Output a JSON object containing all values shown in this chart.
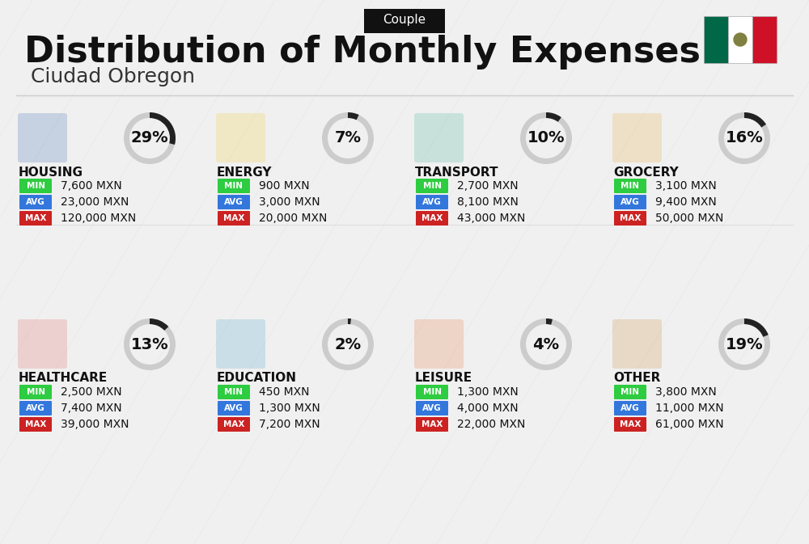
{
  "title": "Distribution of Monthly Expenses",
  "subtitle": "Ciudad Obregon",
  "tag": "Couple",
  "bg_color": "#f0f0f0",
  "categories": [
    {
      "name": "HOUSING",
      "pct": 29,
      "col": 0,
      "row": 0,
      "min": "7,600 MXN",
      "avg": "23,000 MXN",
      "max": "120,000 MXN",
      "icon_color": "#2255aa"
    },
    {
      "name": "ENERGY",
      "pct": 7,
      "col": 1,
      "row": 0,
      "min": "900 MXN",
      "avg": "3,000 MXN",
      "max": "20,000 MXN",
      "icon_color": "#f5c518"
    },
    {
      "name": "TRANSPORT",
      "pct": 10,
      "col": 2,
      "row": 0,
      "min": "2,700 MXN",
      "avg": "8,100 MXN",
      "max": "43,000 MXN",
      "icon_color": "#2aaa8a"
    },
    {
      "name": "GROCERY",
      "pct": 16,
      "col": 3,
      "row": 0,
      "min": "3,100 MXN",
      "avg": "9,400 MXN",
      "max": "50,000 MXN",
      "icon_color": "#e8a020"
    },
    {
      "name": "HEALTHCARE",
      "pct": 13,
      "col": 0,
      "row": 1,
      "min": "2,500 MXN",
      "avg": "7,400 MXN",
      "max": "39,000 MXN",
      "icon_color": "#e05050"
    },
    {
      "name": "EDUCATION",
      "pct": 2,
      "col": 1,
      "row": 1,
      "min": "450 MXN",
      "avg": "1,300 MXN",
      "max": "7,200 MXN",
      "icon_color": "#3399cc"
    },
    {
      "name": "LEISURE",
      "pct": 4,
      "col": 2,
      "row": 1,
      "min": "1,300 MXN",
      "avg": "4,000 MXN",
      "max": "22,000 MXN",
      "icon_color": "#e06820"
    },
    {
      "name": "OTHER",
      "pct": 19,
      "col": 3,
      "row": 1,
      "min": "3,800 MXN",
      "avg": "11,000 MXN",
      "max": "61,000 MXN",
      "icon_color": "#c87820"
    }
  ],
  "color_min": "#2ecc40",
  "color_avg": "#3377dd",
  "color_max": "#cc2222",
  "arc_color_filled": "#222222",
  "arc_color_empty": "#cccccc"
}
